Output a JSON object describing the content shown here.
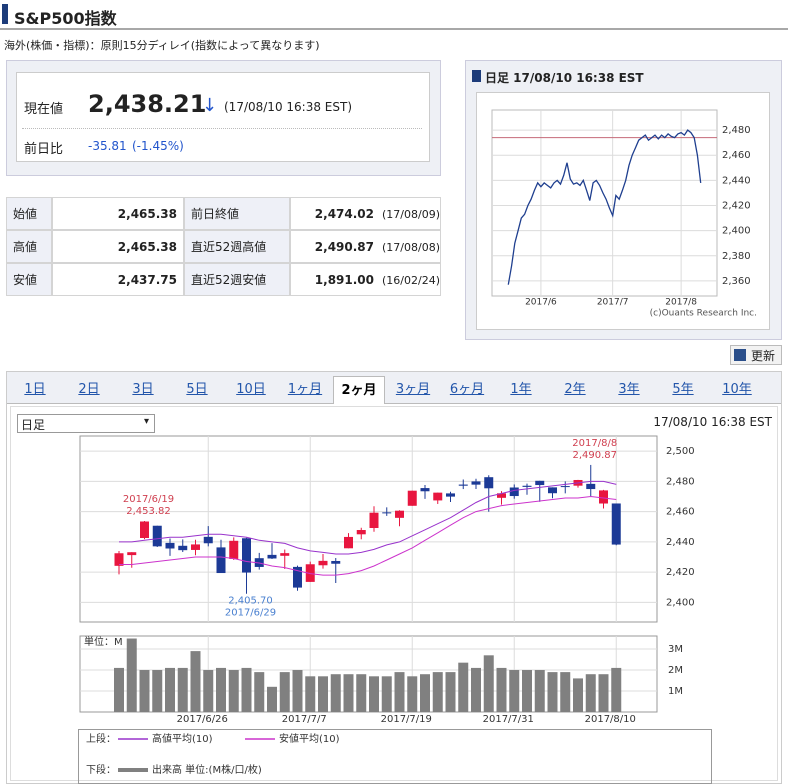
{
  "header": {
    "title": "S&P500指数",
    "note": "海外(株価・指標)：原則15分ディレイ(指数によって異なります)"
  },
  "quote": {
    "price_label": "現在値",
    "price": "2,438.21",
    "arrow": "↓",
    "time": "(17/08/10 16:38 EST)",
    "change_label": "前日比",
    "change": "-35.81",
    "change_pct": "(-1.45%)"
  },
  "stats": {
    "rows": [
      [
        "始値",
        "2,465.38",
        "前日終値",
        "2,474.02",
        "(17/08/09)"
      ],
      [
        "高値",
        "2,465.38",
        "直近52週高値",
        "2,490.87",
        "(17/08/08)"
      ],
      [
        "安値",
        "2,437.75",
        "直近52週安値",
        "1,891.00",
        "(16/02/24)"
      ]
    ]
  },
  "refresh": "更新",
  "tabs": {
    "items": [
      "1日",
      "2日",
      "3日",
      "5日",
      "10日",
      "1ヶ月",
      "2ヶ月",
      "3ヶ月",
      "6ヶ月",
      "1年",
      "2年",
      "3年",
      "5年",
      "10年"
    ],
    "active": 6
  },
  "chart_data": [
    {
      "type": "line",
      "title": "日足 17/08/10 16:38 EST",
      "color": "#1f3f8f",
      "values": [
        2357,
        2372,
        2390,
        2400,
        2410,
        2413,
        2420,
        2425,
        2432,
        2438,
        2435,
        2438,
        2436,
        2434,
        2438,
        2440,
        2437,
        2444,
        2454,
        2441,
        2437,
        2438,
        2436,
        2440,
        2432,
        2424,
        2438,
        2440,
        2436,
        2430,
        2425,
        2418,
        2412,
        2428,
        2425,
        2432,
        2440,
        2452,
        2460,
        2466,
        2472,
        2474,
        2476,
        2472,
        2474,
        2476,
        2473,
        2476,
        2474,
        2477,
        2475,
        2474,
        2477,
        2478,
        2476,
        2480,
        2478,
        2474,
        2460,
        2438
      ],
      "ref_line": 2474.02,
      "ref_color": "#c46a78",
      "xlim": [
        -5,
        64
      ],
      "xticks": [
        {
          "value": 10,
          "label": "2017/6"
        },
        {
          "value": 32,
          "label": "2017/7"
        },
        {
          "value": 53,
          "label": "2017/8"
        }
      ],
      "ylim": [
        2348,
        2496
      ],
      "yticks": [
        {
          "value": 2360,
          "label": "2,360"
        },
        {
          "value": 2380,
          "label": "2,380"
        },
        {
          "value": 2400,
          "label": "2,400"
        },
        {
          "value": 2420,
          "label": "2,420"
        },
        {
          "value": 2440,
          "label": "2,440"
        },
        {
          "value": 2460,
          "label": "2,460"
        },
        {
          "value": 2480,
          "label": "2,480"
        }
      ],
      "grid": true,
      "credit": "(c)Ouants Research Inc."
    },
    {
      "type": "candlestick",
      "select": "日足",
      "timestamp": "17/08/10 16:38 EST",
      "categories": [
        null,
        null,
        null,
        null,
        null,
        null,
        null,
        "2017/6/26",
        null,
        null,
        null,
        null,
        null,
        null,
        null,
        "2017/7/7",
        null,
        null,
        null,
        null,
        null,
        null,
        null,
        "2017/7/19",
        null,
        null,
        null,
        null,
        null,
        null,
        null,
        "2017/7/31",
        null,
        null,
        null,
        null,
        null,
        null,
        null,
        "2017/8/10"
      ],
      "open": [
        2424.14,
        2431.24,
        2442.55,
        2450.66,
        2439.31,
        2437.4,
        2434.65,
        2443.32,
        2436.34,
        2428.7,
        2442.38,
        2429.2,
        2431.39,
        2430.78,
        2423.44,
        2413.52,
        2424.51,
        2427.35,
        2435.75,
        2444.99,
        2449.16,
        2459.5,
        2455.88,
        2463.85,
        2475.56,
        2467.4,
        2472.04,
        2477.88,
        2479.97,
        2482.76,
        2469.12,
        2475.94,
        2477.1,
        2480.38,
        2476.03,
        2476.88,
        2477.14,
        2478.35,
        2465.35,
        2465.38
      ],
      "high": [
        2433.95,
        2433.15,
        2453.82,
        2450.66,
        2442.23,
        2441.62,
        2441.4,
        2450.42,
        2441.37,
        2442.97,
        2442.73,
        2432.71,
        2439.17,
        2434.9,
        2424.28,
        2426.92,
        2432.0,
        2429.3,
        2445.76,
        2449.32,
        2463.54,
        2462.82,
        2460.92,
        2473.83,
        2477.62,
        2472.54,
        2473.1,
        2481.24,
        2481.69,
        2484.04,
        2473.53,
        2477.96,
        2478.51,
        2480.38,
        2476.03,
        2480.0,
        2480.95,
        2490.87,
        2474.41,
        2465.38
      ],
      "low": [
        2418.53,
        2422.88,
        2441.79,
        2436.6,
        2430.74,
        2433.27,
        2431.11,
        2437.03,
        2419.38,
        2428.02,
        2405.7,
        2421.65,
        2428.69,
        2422.05,
        2407.7,
        2413.52,
        2422.27,
        2412.79,
        2435.75,
        2441.69,
        2446.69,
        2457.16,
        2450.34,
        2463.85,
        2468.43,
        2465.06,
        2466.32,
        2474.91,
        2474.94,
        2459.93,
        2464.66,
        2468.53,
        2471.14,
        2466.48,
        2468.85,
        2472.08,
        2475.88,
        2470.32,
        2462.08,
        2437.75
      ],
      "close": [
        2432.46,
        2433.15,
        2453.46,
        2437.03,
        2435.61,
        2434.5,
        2438.3,
        2439.07,
        2419.38,
        2440.69,
        2419.7,
        2423.41,
        2429.01,
        2432.54,
        2409.75,
        2425.18,
        2427.43,
        2425.53,
        2443.25,
        2447.83,
        2459.27,
        2459.14,
        2460.61,
        2473.83,
        2473.45,
        2472.54,
        2469.91,
        2477.13,
        2477.83,
        2475.42,
        2472.1,
        2470.3,
        2476.35,
        2477.57,
        2472.16,
        2476.83,
        2480.91,
        2474.92,
        2474.02,
        2438.21
      ],
      "up_color": "#e8163f",
      "down_color": "#1c3a96",
      "series": [
        {
          "name": "高値平均(10)",
          "color": "#9933cc",
          "values": [
            2440,
            2440,
            2441,
            2442,
            2443,
            2443,
            2444,
            2445,
            2445,
            2444,
            2443,
            2441,
            2440,
            2439,
            2436,
            2434,
            2433,
            2432,
            2432,
            2433,
            2435,
            2438,
            2440,
            2444,
            2448,
            2452,
            2456,
            2461,
            2466,
            2470,
            2472,
            2474,
            2475,
            2476,
            2477,
            2478,
            2479,
            2480,
            2480,
            2478
          ]
        },
        {
          "name": "安値平均(10)",
          "color": "#cc33cc",
          "values": [
            2425,
            2425,
            2426,
            2427,
            2428,
            2429,
            2430,
            2430,
            2430,
            2429,
            2427,
            2426,
            2424,
            2423,
            2421,
            2419,
            2418,
            2418,
            2419,
            2421,
            2424,
            2428,
            2432,
            2436,
            2441,
            2446,
            2451,
            2456,
            2460,
            2462,
            2464,
            2465,
            2466,
            2467,
            2468,
            2469,
            2469,
            2470,
            2469,
            2468
          ]
        }
      ],
      "legend_prefix": "上段：",
      "annotations": [
        {
          "date": "2017/6/19",
          "label": "2,453.82",
          "value": 2453.82,
          "color": "#d04050"
        },
        {
          "date": "2017/6/29",
          "label": "2,405.70",
          "value": 2405.7,
          "color": "#4a80d0"
        },
        {
          "date": "2017/8/8",
          "label": "2,490.87",
          "value": 2490.87,
          "color": "#d04050"
        }
      ],
      "ylim": [
        2387,
        2510
      ],
      "yticks": [
        {
          "value": 2400,
          "label": "2,400"
        },
        {
          "value": 2420,
          "label": "2,420"
        },
        {
          "value": 2440,
          "label": "2,440"
        },
        {
          "value": 2460,
          "label": "2,460"
        },
        {
          "value": 2480,
          "label": "2,480"
        },
        {
          "value": 2500,
          "label": "2,500"
        }
      ],
      "grid": true
    },
    {
      "type": "bar",
      "unit_label": "単位：M",
      "name": "出来高 単位:(M株/口/枚)",
      "legend_prefix": "下段：",
      "color": "#808080",
      "values": [
        2.1,
        3.5,
        2.0,
        2.0,
        2.1,
        2.1,
        2.9,
        2.0,
        2.1,
        2.0,
        2.1,
        1.9,
        1.2,
        1.9,
        2.0,
        1.7,
        1.7,
        1.8,
        1.8,
        1.8,
        1.7,
        1.7,
        1.9,
        1.7,
        1.8,
        1.9,
        1.9,
        2.35,
        2.1,
        2.7,
        2.1,
        2.0,
        2.0,
        2.0,
        1.9,
        1.9,
        1.6,
        1.8,
        1.8,
        2.1
      ],
      "ylim": [
        0,
        3.62
      ],
      "yticks": [
        {
          "value": 1,
          "label": "1M"
        },
        {
          "value": 2,
          "label": "2M"
        },
        {
          "value": 3,
          "label": "3M"
        }
      ],
      "grid": true
    }
  ]
}
